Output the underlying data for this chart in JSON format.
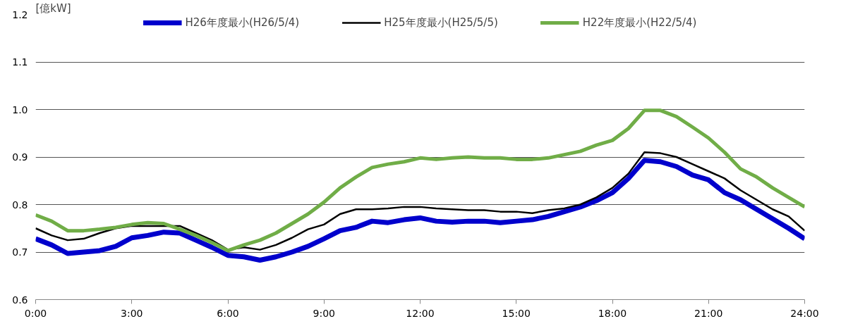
{
  "chart_data": {
    "type": "line",
    "ylabel": "[億kW]",
    "x": [
      0,
      0.5,
      1,
      1.5,
      2,
      2.5,
      3,
      3.5,
      4,
      4.5,
      5,
      5.5,
      6,
      6.5,
      7,
      7.5,
      8,
      8.5,
      9,
      9.5,
      10,
      10.5,
      11,
      11.5,
      12,
      12.5,
      13,
      13.5,
      14,
      14.5,
      15,
      15.5,
      16,
      16.5,
      17,
      17.5,
      18,
      18.5,
      19,
      19.5,
      20,
      20.5,
      21,
      21.5,
      22,
      22.5,
      23,
      23.5,
      24
    ],
    "series": [
      {
        "name": "H26年度最小(H26/5/4)",
        "color": "#0000cc",
        "values": [
          0.728,
          0.715,
          0.697,
          0.7,
          0.703,
          0.712,
          0.73,
          0.735,
          0.742,
          0.74,
          0.725,
          0.71,
          0.693,
          0.69,
          0.683,
          0.69,
          0.7,
          0.712,
          0.728,
          0.745,
          0.752,
          0.765,
          0.762,
          0.768,
          0.772,
          0.765,
          0.763,
          0.765,
          0.765,
          0.762,
          0.765,
          0.768,
          0.775,
          0.785,
          0.795,
          0.808,
          0.825,
          0.855,
          0.893,
          0.89,
          0.88,
          0.862,
          0.852,
          0.825,
          0.81,
          0.79,
          0.77,
          0.75,
          0.728
        ]
      },
      {
        "name": "H25年度最小(H25/5/5)",
        "color": "#000000",
        "values": [
          0.75,
          0.735,
          0.725,
          0.728,
          0.74,
          0.75,
          0.755,
          null,
          0.755,
          0.755,
          0.74,
          0.725,
          0.705,
          0.71,
          0.705,
          0.715,
          0.73,
          0.748,
          0.758,
          0.78,
          0.79,
          0.79,
          0.792,
          0.795,
          0.795,
          0.792,
          0.79,
          0.788,
          0.788,
          0.785,
          0.785,
          0.782,
          0.788,
          0.792,
          0.8,
          0.815,
          0.835,
          0.865,
          0.91,
          0.908,
          0.9,
          0.885,
          0.87,
          0.855,
          0.83,
          0.81,
          0.79,
          0.775,
          0.745
        ]
      },
      {
        "name": "H22年度最小(H22/5/4)",
        "color": "#70ad47",
        "values": [
          0.778,
          0.765,
          0.745,
          0.745,
          0.748,
          0.752,
          0.758,
          0.762,
          0.76,
          0.748,
          0.735,
          0.72,
          0.703,
          0.715,
          0.725,
          0.74,
          0.76,
          0.78,
          0.805,
          0.835,
          0.858,
          0.878,
          0.885,
          0.89,
          0.898,
          0.895,
          0.898,
          0.9,
          0.898,
          0.898,
          0.895,
          0.895,
          0.898,
          0.905,
          0.912,
          0.925,
          0.935,
          0.96,
          0.998,
          0.998,
          0.985,
          0.963,
          0.94,
          0.91,
          0.875,
          0.858,
          0.835,
          0.815,
          0.795
        ]
      }
    ],
    "xlim": [
      0,
      24
    ],
    "xticks": [
      {
        "value": 0,
        "label": "0:00"
      },
      {
        "value": 3,
        "label": "3:00"
      },
      {
        "value": 6,
        "label": "6:00"
      },
      {
        "value": 9,
        "label": "9:00"
      },
      {
        "value": 12,
        "label": "12:00"
      },
      {
        "value": 15,
        "label": "15:00"
      },
      {
        "value": 18,
        "label": "18:00"
      },
      {
        "value": 21,
        "label": "21:00"
      },
      {
        "value": 24,
        "label": "24:00"
      }
    ],
    "ylim": [
      0.6,
      1.2
    ],
    "yticks": [
      {
        "value": 0.6,
        "label": "0.6"
      },
      {
        "value": 0.7,
        "label": "0.7"
      },
      {
        "value": 0.8,
        "label": "0.8"
      },
      {
        "value": 0.9,
        "label": "0.9"
      },
      {
        "value": 1.0,
        "label": "1.0"
      },
      {
        "value": 1.1,
        "label": "1.1"
      },
      {
        "value": 1.2,
        "label": "1.2"
      }
    ],
    "grid": "y",
    "legend": "top",
    "marker": "none",
    "line_style": "solid"
  }
}
